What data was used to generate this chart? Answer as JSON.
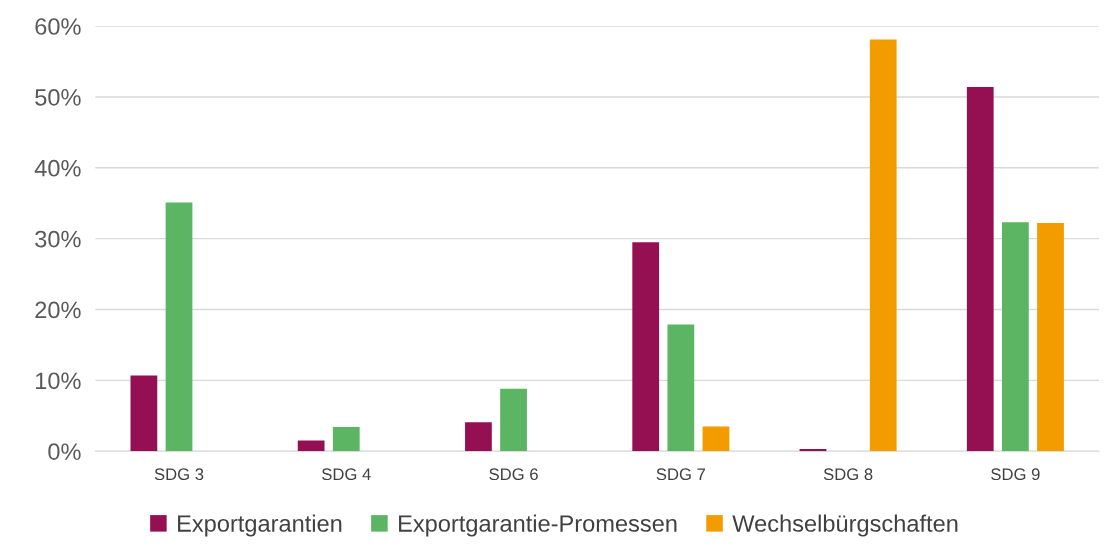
{
  "chart_data": {
    "type": "bar",
    "categories": [
      "SDG 3",
      "SDG 4",
      "SDG 6",
      "SDG 7",
      "SDG 8",
      "SDG 9"
    ],
    "series": [
      {
        "name": "Exportgarantien",
        "color": "#951052",
        "values": [
          10.7,
          1.5,
          4.1,
          29.5,
          0.3,
          51.4
        ]
      },
      {
        "name": "Exportgarantie-Promessen",
        "color": "#5cb562",
        "values": [
          35.1,
          3.4,
          8.8,
          17.9,
          0,
          32.3
        ]
      },
      {
        "name": "Wechselbürgschaften",
        "color": "#f39c00",
        "values": [
          0,
          0,
          0,
          3.5,
          58.1,
          32.2
        ]
      }
    ],
    "ylim": [
      0,
      60
    ],
    "yticks": [
      {
        "value": 0,
        "label": "0%"
      },
      {
        "value": 10,
        "label": "10%"
      },
      {
        "value": 20,
        "label": "20%"
      },
      {
        "value": 30,
        "label": "30%"
      },
      {
        "value": 40,
        "label": "40%"
      },
      {
        "value": 50,
        "label": "50%"
      },
      {
        "value": 60,
        "label": "60%"
      }
    ],
    "grid": "y",
    "legend": "bottom"
  }
}
